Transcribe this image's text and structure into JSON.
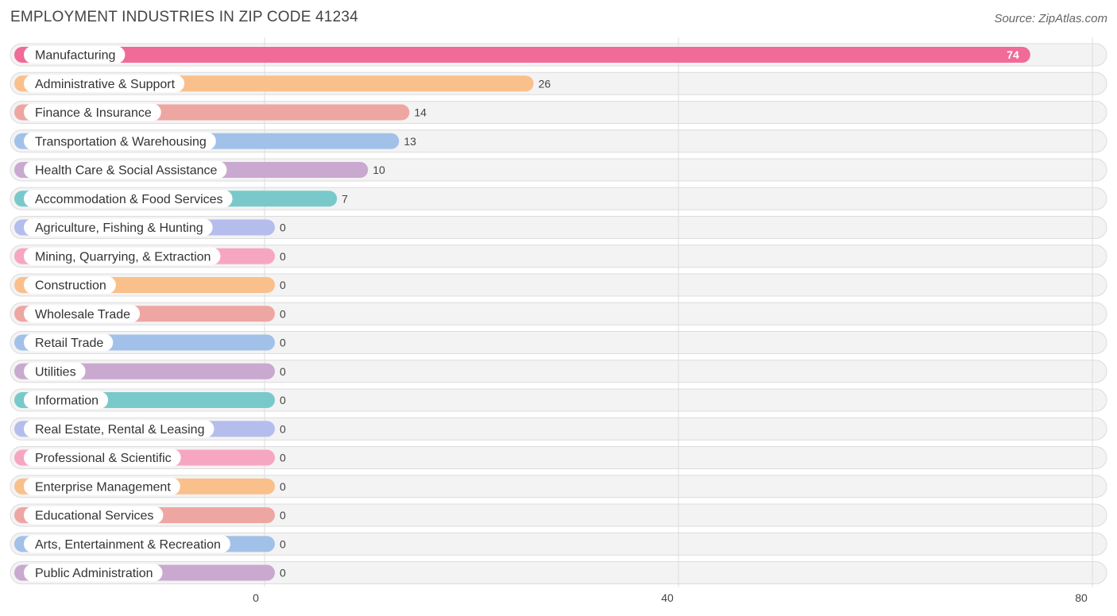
{
  "header": {
    "title": "EMPLOYMENT INDUSTRIES IN ZIP CODE 41234",
    "source": "Source: ZipAtlas.com"
  },
  "chart_data": {
    "type": "bar",
    "orientation": "horizontal",
    "title": "EMPLOYMENT INDUSTRIES IN ZIP CODE 41234",
    "categories": [
      "Manufacturing",
      "Administrative & Support",
      "Finance & Insurance",
      "Transportation & Warehousing",
      "Health Care & Social Assistance",
      "Accommodation & Food Services",
      "Agriculture, Fishing & Hunting",
      "Mining, Quarrying, & Extraction",
      "Construction",
      "Wholesale Trade",
      "Retail Trade",
      "Utilities",
      "Information",
      "Real Estate, Rental & Leasing",
      "Professional & Scientific",
      "Enterprise Management",
      "Educational Services",
      "Arts, Entertainment & Recreation",
      "Public Administration"
    ],
    "values": [
      74,
      26,
      14,
      13,
      10,
      7,
      0,
      0,
      0,
      0,
      0,
      0,
      0,
      0,
      0,
      0,
      0,
      0,
      0
    ],
    "colors": [
      "#f06b97",
      "#f9c08c",
      "#eea6a3",
      "#a2c1e8",
      "#c9a9cf",
      "#79c9cb",
      "#b4bdec",
      "#f7a6c1",
      "#f9c08c",
      "#eea6a3",
      "#a2c1e8",
      "#c9a9cf",
      "#79c9cb",
      "#b4bdec",
      "#f7a6c1",
      "#f9c08c",
      "#eea6a3",
      "#a2c1e8",
      "#c9a9cf"
    ],
    "xlim": [
      0,
      80
    ],
    "xticks": [
      "0",
      "40",
      "80"
    ],
    "grid": true
  }
}
